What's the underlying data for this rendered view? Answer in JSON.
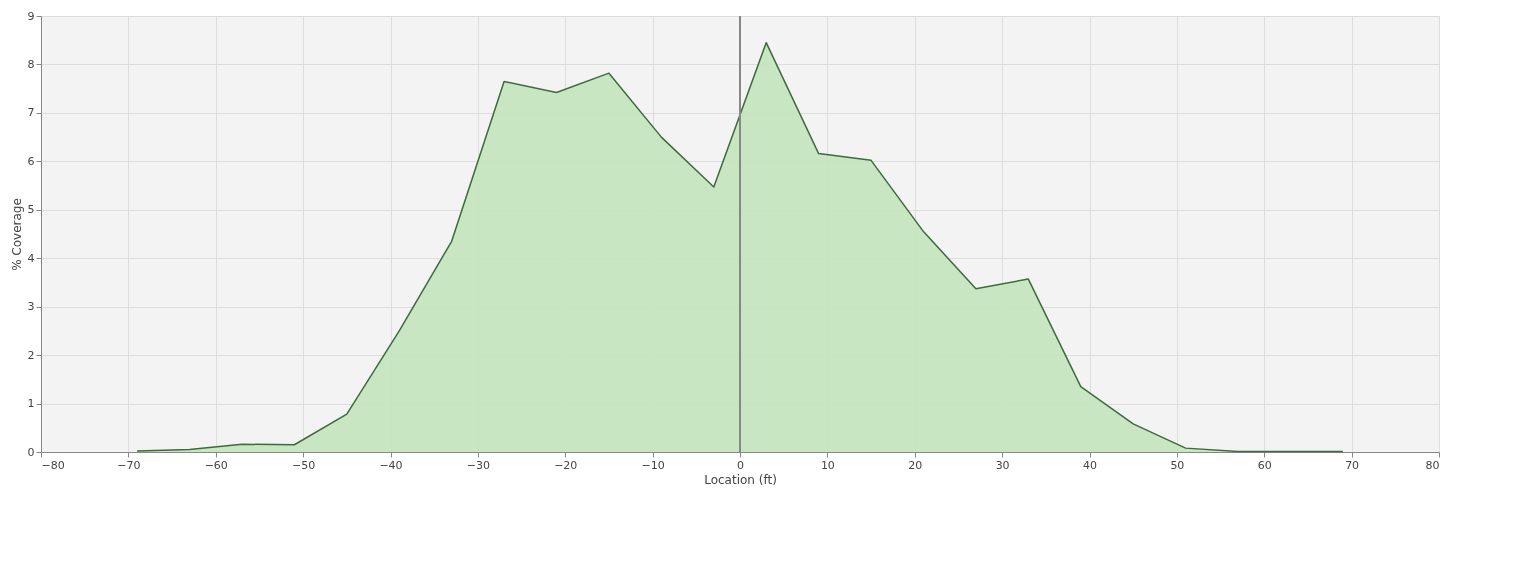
{
  "chart_data": {
    "type": "area",
    "xlabel": "Location (ft)",
    "ylabel": "% Coverage",
    "x": [
      -69,
      -63,
      -57,
      -51,
      -45,
      -39,
      -33,
      -27,
      -21,
      -15,
      -9,
      -3,
      3,
      9,
      15,
      21,
      27,
      33,
      39,
      45,
      51,
      57,
      63,
      69
    ],
    "series": [
      {
        "color": "#c3e4bd",
        "values": [
          0.02,
          0.05,
          0.16,
          0.15,
          0.78,
          2.5,
          4.35,
          7.65,
          7.42,
          7.82,
          6.5,
          5.47,
          8.45,
          6.16,
          6.02,
          4.55,
          3.37,
          3.57,
          1.35,
          0.58,
          0.08,
          0.01,
          0.01,
          0.01
        ]
      }
    ],
    "xlim": [
      -80,
      80
    ],
    "xticks": [
      -80,
      -70,
      -60,
      -50,
      -40,
      -30,
      -20,
      -10,
      0,
      10,
      20,
      30,
      40,
      50,
      60,
      70,
      80
    ],
    "ylim": [
      0,
      9
    ],
    "yticks": [
      0,
      1,
      2,
      3,
      4,
      5,
      6,
      7,
      8,
      9
    ],
    "grid": true,
    "ref_lines": [
      {
        "axis": "x",
        "value": 0,
        "color": "#888888"
      }
    ]
  }
}
